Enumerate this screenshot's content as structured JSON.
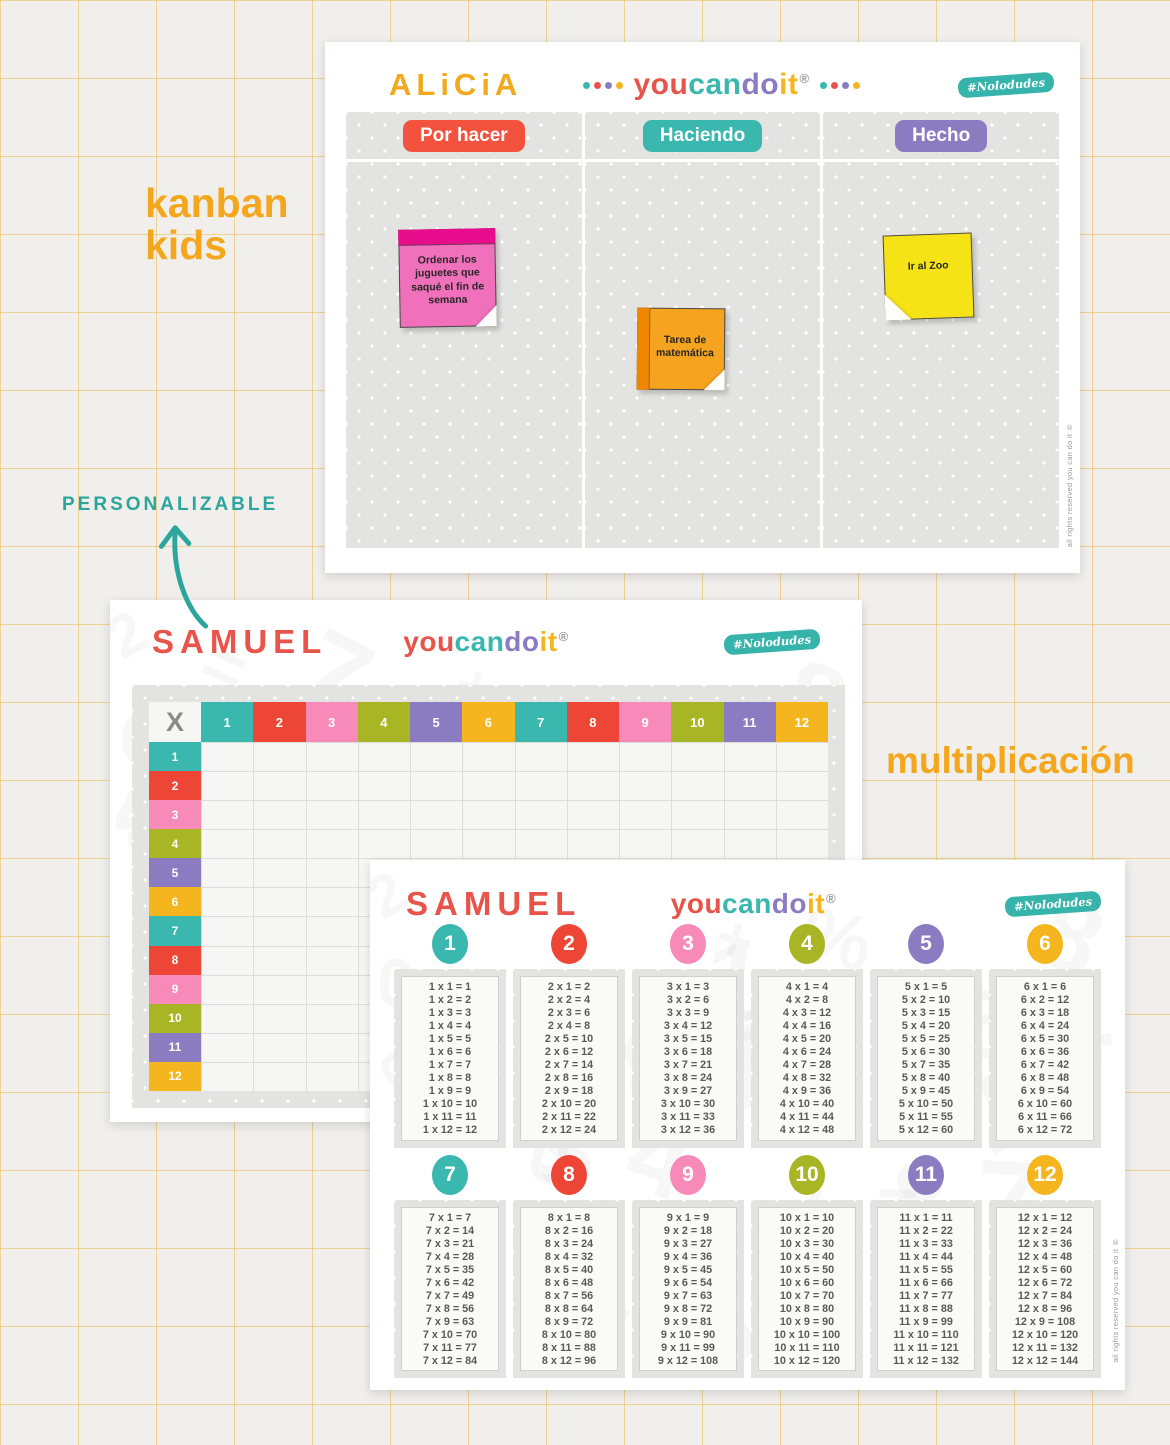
{
  "page": {
    "labels": {
      "kanban_line1": "kanban",
      "kanban_line2": "kids",
      "personalizable": "PERSONALIZABLE",
      "multiplicacion": "multiplicación"
    },
    "rights": "all rights reserved you can do it ®",
    "background": "#f0efec",
    "grid_line_color": "#eab53c"
  },
  "brand": {
    "logo_parts": [
      {
        "text": "you",
        "color": "#e8544a"
      },
      {
        "text": "can",
        "color": "#3ab7ae"
      },
      {
        "text": "do",
        "color": "#8b7cc2"
      },
      {
        "text": "it",
        "color": "#f4b51e"
      }
    ],
    "registered": "®",
    "hashtag": "#Nolodudes",
    "dot_colors": [
      "#3ab7ae",
      "#e8544a",
      "#8b7cc2",
      "#f4b51e"
    ]
  },
  "kanban_board": {
    "owner": "ALiCiA",
    "owner_color": "#f2a91c",
    "columns": [
      {
        "label": "Por hacer",
        "color": "#f3523f"
      },
      {
        "label": "Haciendo",
        "color": "#3ab7ae"
      },
      {
        "label": "Hecho",
        "color": "#8b7cc2"
      }
    ],
    "notes": [
      {
        "text": "Ordenar los juguetes que saqué el fin de semana",
        "color": "#f170bb",
        "strip": "#e70d8c"
      },
      {
        "text": "Tarea de matemática",
        "color": "#f6a41f",
        "strip": "#ee8602"
      },
      {
        "text": "Ir al Zoo",
        "color": "#f6e315",
        "strip": ""
      }
    ]
  },
  "grid_board": {
    "owner": "SAMUEL",
    "owner_color": "#e8544a",
    "corner": "X",
    "headers": [
      "1",
      "2",
      "3",
      "4",
      "5",
      "6",
      "7",
      "8",
      "9",
      "10",
      "11",
      "12"
    ],
    "palette": [
      "#3ab7ae",
      "#ee4636",
      "#f78ab8",
      "#a8b524",
      "#8b7cc2",
      "#f4b51e"
    ]
  },
  "tables_board": {
    "owner": "SAMUEL",
    "tables": [
      {
        "number": "1",
        "color": "#3ab7ae",
        "rows": [
          "1 x 1 = 1",
          "1 x 2 = 2",
          "1 x 3 = 3",
          "1 x 4 = 4",
          "1 x 5 = 5",
          "1 x 6 = 6",
          "1 x 7 = 7",
          "1 x 8 = 8",
          "1 x 9 = 9",
          "1 x 10 = 10",
          "1 x 11 = 11",
          "1 x 12 = 12"
        ]
      },
      {
        "number": "2",
        "color": "#ee4636",
        "rows": [
          "2 x 1 = 2",
          "2 x 2 = 4",
          "2 x 3 = 6",
          "2 x 4 = 8",
          "2 x 5 = 10",
          "2 x 6 = 12",
          "2 x 7 = 14",
          "2 x 8 = 16",
          "2 x 9 = 18",
          "2 x 10 = 20",
          "2 x 11 = 22",
          "2 x 12 = 24"
        ]
      },
      {
        "number": "3",
        "color": "#f78ab8",
        "rows": [
          "3 x 1 = 3",
          "3 x 2 = 6",
          "3 x 3 = 9",
          "3 x 4 = 12",
          "3 x 5 = 15",
          "3 x 6 = 18",
          "3 x 7 = 21",
          "3 x 8 = 24",
          "3 x 9 = 27",
          "3 x 10 = 30",
          "3 x 11 = 33",
          "3 x 12 = 36"
        ]
      },
      {
        "number": "4",
        "color": "#a8b524",
        "rows": [
          "4 x 1 = 4",
          "4 x 2 = 8",
          "4 x 3 = 12",
          "4 x 4 = 16",
          "4 x 5 = 20",
          "4 x 6 = 24",
          "4 x 7 = 28",
          "4 x 8 = 32",
          "4 x 9 = 36",
          "4 x 10 = 40",
          "4 x 11 = 44",
          "4 x 12 = 48"
        ]
      },
      {
        "number": "5",
        "color": "#8b7cc2",
        "rows": [
          "5 x 1 = 5",
          "5 x 2 = 10",
          "5 x 3 = 15",
          "5 x 4 = 20",
          "5 x 5 = 25",
          "5 x 6 = 30",
          "5 x 7 = 35",
          "5 x 8 = 40",
          "5 x 9 = 45",
          "5 x 10 = 50",
          "5 x 11 = 55",
          "5 x 12 = 60"
        ]
      },
      {
        "number": "6",
        "color": "#f4b51e",
        "rows": [
          "6 x 1 = 6",
          "6 x 2 = 12",
          "6 x 3 = 18",
          "6 x 4 = 24",
          "6 x 5 = 30",
          "6 x 6 = 36",
          "6 x 7 = 42",
          "6 x 8 = 48",
          "6 x 9 = 54",
          "6 x 10 = 60",
          "6 x 11 = 66",
          "6 x 12 = 72"
        ]
      },
      {
        "number": "7",
        "color": "#3ab7ae",
        "rows": [
          "7 x 1 = 7",
          "7 x 2 = 14",
          "7 x 3 = 21",
          "7 x 4 = 28",
          "7 x 5 = 35",
          "7 x 6 = 42",
          "7 x 7 = 49",
          "7 x 8 = 56",
          "7 x 9 = 63",
          "7 x 10 = 70",
          "7 x 11 = 77",
          "7 x 12 = 84"
        ]
      },
      {
        "number": "8",
        "color": "#ee4636",
        "rows": [
          "8 x 1 = 8",
          "8 x 2 = 16",
          "8 x 3 = 24",
          "8 x 4 = 32",
          "8 x 5 = 40",
          "8 x 6 = 48",
          "8 x 7 = 56",
          "8 x 8 = 64",
          "8 x 9 = 72",
          "8 x 10 = 80",
          "8 x 11 = 88",
          "8 x 12 = 96"
        ]
      },
      {
        "number": "9",
        "color": "#f78ab8",
        "rows": [
          "9 x 1 = 9",
          "9 x 2 = 18",
          "9 x 3 = 27",
          "9 x 4 = 36",
          "9 x 5 = 45",
          "9 x 6 = 54",
          "9 x 7 = 63",
          "9 x 8 = 72",
          "9 x 9 = 81",
          "9 x 10 = 90",
          "9 x 11 = 99",
          "9 x 12 = 108"
        ]
      },
      {
        "number": "10",
        "color": "#a8b524",
        "rows": [
          "10 x 1 = 10",
          "10 x 2 = 20",
          "10 x 3 = 30",
          "10 x 4 = 40",
          "10 x 5 = 50",
          "10 x 6 = 60",
          "10 x 7 = 70",
          "10 x 8 = 80",
          "10 x 9 = 90",
          "10 x 10 = 100",
          "10 x 11 = 110",
          "10 x 12 = 120"
        ]
      },
      {
        "number": "11",
        "color": "#8b7cc2",
        "rows": [
          "11 x 1 = 11",
          "11 x 2 = 22",
          "11 x 3 = 33",
          "11 x 4 = 44",
          "11 x 5 = 55",
          "11 x 6 = 66",
          "11 x 7 = 77",
          "11 x 8 = 88",
          "11 x 9 = 99",
          "11 x 10 = 110",
          "11 x 11 = 121",
          "11 x 12 = 132"
        ]
      },
      {
        "number": "12",
        "color": "#f4b51e",
        "rows": [
          "12 x 1 = 12",
          "12 x 2 = 24",
          "12 x 3 = 36",
          "12 x 4 = 48",
          "12 x 5 = 60",
          "12 x 6 = 72",
          "12 x 7 = 84",
          "12 x 8 = 96",
          "12 x 9 = 108",
          "12 x 10 = 120",
          "12 x 11 = 132",
          "12 x 12 = 144"
        ]
      }
    ]
  },
  "watermark_chars": [
    "2",
    "5",
    "+",
    "8",
    "0",
    "1",
    "=",
    "4",
    "%",
    "7"
  ]
}
